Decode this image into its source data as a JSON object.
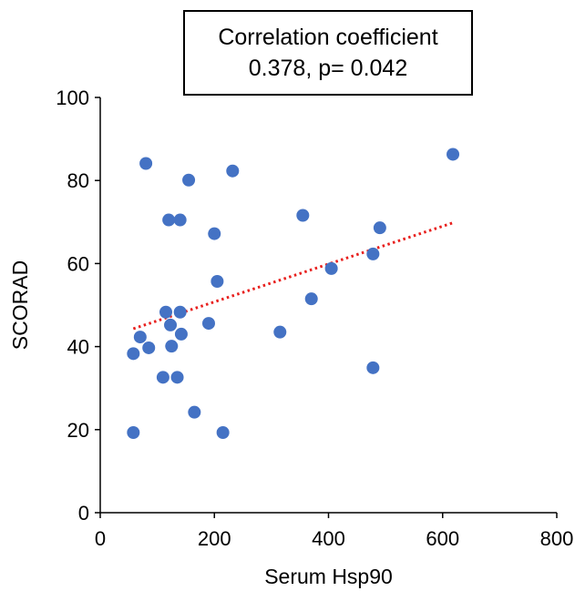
{
  "chart_data": {
    "type": "scatter",
    "annotation": {
      "line1": "Correlation coefficient",
      "line2": "0.378, p= 0.042"
    },
    "xlabel": "Serum Hsp90",
    "ylabel": "SCORAD",
    "xlim": [
      0,
      800
    ],
    "ylim": [
      0,
      100
    ],
    "x_ticks": [
      "0",
      "200",
      "400",
      "600",
      "800"
    ],
    "y_ticks": [
      "0",
      "20",
      "40",
      "60",
      "80",
      "100"
    ],
    "grid": false,
    "point_color": "#4472C4",
    "trendline_color": "#E8201E",
    "trendline": {
      "style": "dotted",
      "x": [
        58,
        620
      ],
      "y": [
        44.3,
        69.9
      ]
    },
    "points": [
      {
        "x": 58,
        "y": 19.3
      },
      {
        "x": 58,
        "y": 38.3
      },
      {
        "x": 70,
        "y": 42.3
      },
      {
        "x": 80,
        "y": 84.1
      },
      {
        "x": 85,
        "y": 39.7
      },
      {
        "x": 110,
        "y": 32.6
      },
      {
        "x": 115,
        "y": 48.3
      },
      {
        "x": 120,
        "y": 70.5
      },
      {
        "x": 123,
        "y": 45.2
      },
      {
        "x": 125,
        "y": 40.1
      },
      {
        "x": 135,
        "y": 32.6
      },
      {
        "x": 140,
        "y": 70.5
      },
      {
        "x": 140,
        "y": 48.3
      },
      {
        "x": 142,
        "y": 43.0
      },
      {
        "x": 155,
        "y": 80.1
      },
      {
        "x": 165,
        "y": 24.2
      },
      {
        "x": 190,
        "y": 45.6
      },
      {
        "x": 200,
        "y": 67.2
      },
      {
        "x": 205,
        "y": 55.7
      },
      {
        "x": 215,
        "y": 19.3
      },
      {
        "x": 232,
        "y": 82.3
      },
      {
        "x": 315,
        "y": 43.5
      },
      {
        "x": 355,
        "y": 71.6
      },
      {
        "x": 370,
        "y": 51.5
      },
      {
        "x": 405,
        "y": 58.8
      },
      {
        "x": 478,
        "y": 34.9
      },
      {
        "x": 478,
        "y": 62.3
      },
      {
        "x": 490,
        "y": 68.6
      },
      {
        "x": 618,
        "y": 86.3
      }
    ]
  }
}
